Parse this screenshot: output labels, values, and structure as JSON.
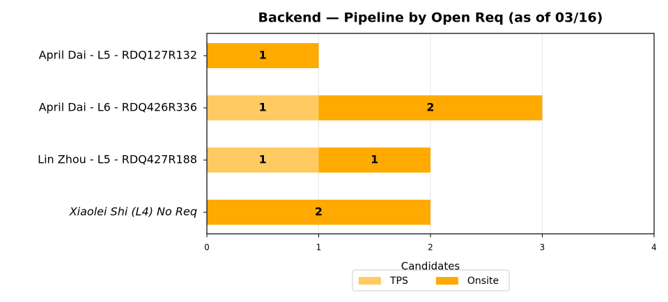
{
  "chart_data": {
    "type": "stacked_barh",
    "title": "Backend — Pipeline by Open Req (as of 03/16)",
    "xlabel": "Candidates",
    "categories": [
      "April Dai - L5 - RDQ127R132",
      "April Dai - L6 - RDQ426R336",
      "Lin Zhou - L5 - RDQ427R188",
      "Xiaolei Shi (L4) No Req"
    ],
    "category_label_colors": [
      "#000000",
      "#000000",
      "#000000",
      "#c00000"
    ],
    "category_label_italic": [
      false,
      false,
      false,
      true
    ],
    "series": [
      {
        "name": "TPS",
        "color": "#ffca62",
        "values": [
          0,
          1,
          1,
          0
        ]
      },
      {
        "name": "Onsite",
        "color": "#ffaa00",
        "values": [
          1,
          2,
          1,
          2
        ]
      }
    ],
    "xlim": [
      0,
      4
    ],
    "xticks": [
      0,
      1,
      2,
      3,
      4
    ],
    "grid": true,
    "legend": "bottom"
  }
}
